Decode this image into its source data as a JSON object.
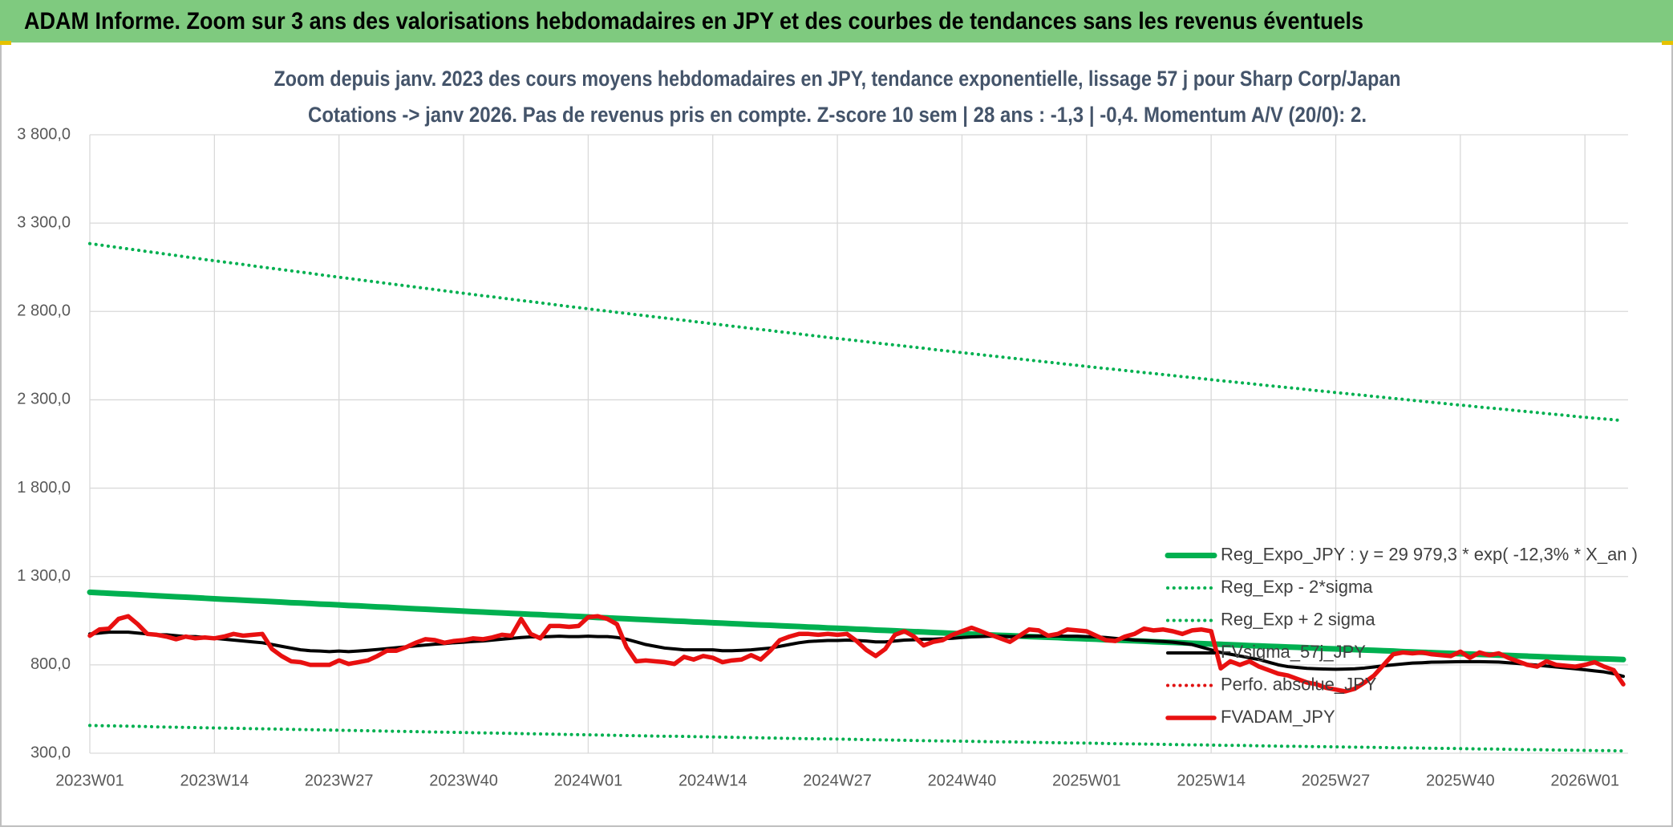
{
  "header": "ADAM Informe. Zoom sur 3 ans des valorisations hebdomadaires en JPY et des courbes de tendances sans les revenus éventuels",
  "chart_data": {
    "type": "line",
    "title": "Zoom depuis janv. 2023 des cours moyens hebdomadaires en JPY, tendance exponentielle, lissage 57 j pour Sharp Corp/Japan",
    "subtitle": "Cotations -> janv 2026. Pas de revenus pris en compte. Z-score 10 sem | 28 ans : -1,3 | -0,4. Momentum A/V (20/0): 2.",
    "categories": [
      "2023W01",
      null,
      null,
      null,
      null,
      null,
      null,
      null,
      null,
      null,
      null,
      null,
      null,
      "2023W14",
      null,
      null,
      null,
      null,
      null,
      null,
      null,
      null,
      null,
      null,
      null,
      null,
      "2023W27",
      null,
      null,
      null,
      null,
      null,
      null,
      null,
      null,
      null,
      null,
      null,
      null,
      "2023W40",
      null,
      null,
      null,
      null,
      null,
      null,
      null,
      null,
      null,
      null,
      null,
      null,
      "2024W01",
      null,
      null,
      null,
      null,
      null,
      null,
      null,
      null,
      null,
      null,
      null,
      null,
      "2024W14",
      null,
      null,
      null,
      null,
      null,
      null,
      null,
      null,
      null,
      null,
      null,
      null,
      "2024W27",
      null,
      null,
      null,
      null,
      null,
      null,
      null,
      null,
      null,
      null,
      null,
      null,
      "2024W40",
      null,
      null,
      null,
      null,
      null,
      null,
      null,
      null,
      null,
      null,
      null,
      null,
      "2025W01",
      null,
      null,
      null,
      null,
      null,
      null,
      null,
      null,
      null,
      null,
      null,
      null,
      "2025W14",
      null,
      null,
      null,
      null,
      null,
      null,
      null,
      null,
      null,
      null,
      null,
      null,
      "2025W27",
      null,
      null,
      null,
      null,
      null,
      null,
      null,
      null,
      null,
      null,
      null,
      null,
      "2025W40",
      null,
      null,
      null,
      null,
      null,
      null,
      null,
      null,
      null,
      null,
      null,
      null,
      "2026W01",
      null,
      null,
      null,
      null
    ],
    "series": [
      {
        "name": "Reg_Expo_JPY : y = 29 979,3 * exp( -12,3% *  X_an )",
        "color": "#00b050",
        "dash": "solid",
        "width": 7,
        "values": [
          1211,
          1208,
          1205,
          1202,
          1200,
          1197,
          1194,
          1191,
          1188,
          1185,
          1183,
          1180,
          1177,
          1174,
          1171,
          1169,
          1166,
          1163,
          1161,
          1158,
          1155,
          1152,
          1150,
          1147,
          1144,
          1142,
          1139,
          1136,
          1134,
          1131,
          1128,
          1126,
          1123,
          1120,
          1117,
          1115,
          1112,
          1109,
          1107,
          1104,
          1101,
          1099,
          1096,
          1094,
          1091,
          1089,
          1086,
          1084,
          1081,
          1079,
          1076,
          1074,
          1071,
          1068,
          1066,
          1063,
          1061,
          1058,
          1056,
          1053,
          1051,
          1048,
          1046,
          1043,
          1041,
          1038,
          1036,
          1033,
          1031,
          1028,
          1026,
          1024,
          1021,
          1019,
          1017,
          1014,
          1012,
          1009,
          1007,
          1005,
          1002,
          1000,
          997,
          995,
          993,
          990,
          988,
          986,
          983,
          981,
          978,
          976,
          974,
          971,
          969,
          967,
          965,
          963,
          960,
          958,
          956,
          954,
          951,
          949,
          947,
          945,
          942,
          940,
          938,
          936,
          934,
          931,
          929,
          927,
          925,
          922,
          920,
          918,
          916,
          914,
          912,
          909,
          907,
          905,
          903,
          901,
          899,
          897,
          894,
          892,
          890,
          888,
          886,
          884,
          882,
          880,
          878,
          875,
          873,
          871,
          869,
          867,
          865,
          863,
          861,
          859,
          857,
          855,
          853,
          851,
          849,
          847,
          845,
          843,
          841,
          839,
          837,
          835,
          834,
          832,
          830
        ]
      },
      {
        "name": "Reg_Exp - 2*sigma",
        "color": "#00b050",
        "dash": "dotted",
        "width": 4,
        "values": [
          457,
          456,
          455,
          454,
          453,
          452,
          451,
          449,
          448,
          447,
          446,
          445,
          444,
          443,
          442,
          441,
          440,
          439,
          438,
          437,
          436,
          435,
          434,
          433,
          432,
          431,
          430,
          429,
          428,
          427,
          426,
          425,
          424,
          423,
          422,
          421,
          420,
          419,
          418,
          417,
          416,
          415,
          414,
          413,
          412,
          411,
          410,
          409,
          408,
          407,
          406,
          405,
          404,
          403,
          402,
          401,
          400,
          399,
          398,
          397,
          396,
          396,
          395,
          394,
          393,
          392,
          391,
          390,
          389,
          388,
          387,
          386,
          385,
          384,
          383,
          382,
          381,
          381,
          380,
          379,
          378,
          377,
          376,
          375,
          374,
          373,
          372,
          371,
          370,
          369,
          369,
          368,
          367,
          366,
          365,
          364,
          364,
          363,
          362,
          361,
          360,
          359,
          358,
          358,
          357,
          356,
          355,
          354,
          353,
          353,
          352,
          351,
          350,
          349,
          348,
          347,
          347,
          346,
          345,
          344,
          344,
          343,
          342,
          341,
          340,
          339,
          339,
          338,
          337,
          337,
          336,
          335,
          334,
          334,
          333,
          332,
          331,
          330,
          330,
          329,
          328,
          327,
          327,
          326,
          325,
          324,
          324,
          323,
          322,
          321,
          320,
          320,
          319,
          318,
          317,
          317,
          316,
          315,
          315,
          314,
          313
        ]
      },
      {
        "name": "Reg_Exp + 2 sigma",
        "color": "#00b050",
        "dash": "dotted",
        "width": 4,
        "values": [
          3184,
          3177,
          3169,
          3162,
          3154,
          3147,
          3139,
          3132,
          3124,
          3117,
          3109,
          3102,
          3094,
          3087,
          3080,
          3073,
          3066,
          3058,
          3051,
          3044,
          3037,
          3030,
          3023,
          3016,
          3008,
          3001,
          2994,
          2987,
          2980,
          2973,
          2966,
          2959,
          2952,
          2945,
          2938,
          2931,
          2924,
          2917,
          2910,
          2903,
          2896,
          2889,
          2883,
          2876,
          2869,
          2862,
          2856,
          2849,
          2842,
          2835,
          2828,
          2822,
          2815,
          2808,
          2802,
          2795,
          2789,
          2782,
          2776,
          2769,
          2763,
          2756,
          2750,
          2743,
          2737,
          2730,
          2724,
          2717,
          2711,
          2704,
          2698,
          2692,
          2685,
          2679,
          2673,
          2666,
          2660,
          2653,
          2647,
          2641,
          2635,
          2629,
          2622,
          2616,
          2610,
          2604,
          2598,
          2592,
          2585,
          2579,
          2573,
          2567,
          2561,
          2555,
          2549,
          2543,
          2537,
          2531,
          2525,
          2519,
          2513,
          2507,
          2501,
          2495,
          2489,
          2483,
          2477,
          2472,
          2466,
          2460,
          2454,
          2449,
          2443,
          2437,
          2431,
          2426,
          2420,
          2414,
          2408,
          2403,
          2397,
          2392,
          2386,
          2380,
          2375,
          2369,
          2364,
          2358,
          2352,
          2347,
          2341,
          2336,
          2330,
          2325,
          2319,
          2314,
          2308,
          2303,
          2297,
          2292,
          2286,
          2281,
          2275,
          2270,
          2265,
          2259,
          2254,
          2249,
          2244,
          2238,
          2233,
          2228,
          2222,
          2217,
          2212,
          2206,
          2201,
          2196,
          2192,
          2187,
          2182
        ]
      },
      {
        "name": "FVsigma_57j_JPY",
        "color": "#000000",
        "dash": "solid",
        "width": 4,
        "values": [
          975,
          980,
          985,
          985,
          985,
          980,
          975,
          970,
          970,
          965,
          960,
          960,
          955,
          950,
          945,
          940,
          935,
          930,
          925,
          915,
          905,
          895,
          885,
          880,
          878,
          875,
          878,
          875,
          878,
          882,
          887,
          892,
          897,
          902,
          907,
          912,
          917,
          920,
          925,
          928,
          932,
          935,
          940,
          945,
          950,
          955,
          958,
          958,
          960,
          962,
          960,
          960,
          962,
          960,
          960,
          955,
          945,
          930,
          915,
          905,
          895,
          890,
          885,
          885,
          885,
          885,
          880,
          880,
          882,
          885,
          890,
          895,
          905,
          915,
          925,
          932,
          935,
          938,
          938,
          940,
          938,
          935,
          930,
          930,
          935,
          940,
          942,
          945,
          945,
          948,
          950,
          955,
          958,
          960,
          962,
          962,
          960,
          960,
          962,
          963,
          963,
          963,
          962,
          962,
          960,
          958,
          955,
          950,
          945,
          940,
          938,
          935,
          932,
          928,
          922,
          915,
          900,
          885,
          870,
          860,
          850,
          840,
          830,
          815,
          800,
          790,
          785,
          780,
          778,
          776,
          775,
          776,
          778,
          782,
          788,
          795,
          800,
          805,
          810,
          812,
          815,
          816,
          817,
          818,
          818,
          818,
          817,
          816,
          812,
          808,
          803,
          798,
          793,
          788,
          783,
          778,
          772,
          766,
          760,
          750,
          735
        ]
      },
      {
        "name": "Perfo. absolue_JPY",
        "color": "#e01010",
        "dash": "dotted",
        "width": 4,
        "values": [
          null,
          null,
          null,
          null,
          null,
          null,
          null,
          null,
          null,
          null,
          null,
          null,
          null,
          null,
          null,
          null,
          null,
          null,
          null,
          null,
          null,
          null,
          null,
          null,
          null,
          null,
          null,
          null,
          null,
          null,
          null,
          null,
          null,
          null,
          null,
          null,
          null,
          null,
          null,
          null,
          null,
          null,
          null,
          null,
          null,
          null,
          null,
          null,
          null,
          null,
          null,
          null,
          null,
          null,
          null,
          null,
          null,
          null,
          null,
          null,
          null,
          null,
          null,
          null,
          null,
          null,
          null,
          null,
          null,
          null,
          null,
          null,
          null,
          null,
          null,
          null,
          null,
          null,
          null,
          null,
          null,
          null,
          null,
          null,
          null,
          null,
          null,
          null,
          null,
          null,
          null,
          null,
          null,
          null,
          null,
          null,
          null,
          null,
          null,
          null,
          null,
          null,
          null,
          null,
          null,
          null,
          null,
          null,
          null,
          null,
          null,
          null,
          null,
          null,
          null,
          null,
          null,
          null,
          null,
          null,
          null,
          null,
          null,
          null,
          null,
          null,
          null,
          null,
          null,
          null,
          null,
          null,
          null,
          null,
          null,
          null,
          null,
          null,
          null,
          null,
          null,
          null,
          null,
          null,
          null,
          null,
          null,
          null,
          null,
          null,
          null,
          null,
          null,
          null,
          null,
          null,
          null,
          null,
          null,
          null,
          null
        ]
      },
      {
        "name": "FVADAM_JPY",
        "color": "#e81010",
        "dash": "solid",
        "width": 5.5,
        "values": [
          965,
          1000,
          1005,
          1060,
          1075,
          1030,
          975,
          970,
          960,
          945,
          960,
          950,
          955,
          950,
          960,
          975,
          965,
          970,
          975,
          890,
          850,
          820,
          815,
          800,
          800,
          800,
          825,
          805,
          815,
          825,
          850,
          880,
          880,
          900,
          925,
          945,
          940,
          925,
          935,
          940,
          950,
          945,
          955,
          970,
          965,
          1060,
          975,
          950,
          1020,
          1020,
          1015,
          1020,
          1070,
          1075,
          1060,
          1030,
          900,
          820,
          825,
          820,
          815,
          805,
          845,
          830,
          850,
          840,
          815,
          825,
          830,
          855,
          830,
          880,
          940,
          960,
          975,
          975,
          970,
          975,
          970,
          975,
          935,
          885,
          850,
          890,
          970,
          990,
          960,
          910,
          930,
          940,
          970,
          990,
          1010,
          990,
          970,
          950,
          930,
          965,
          1000,
          995,
          965,
          975,
          1000,
          995,
          990,
          965,
          940,
          935,
          960,
          975,
          1005,
          995,
          1000,
          990,
          975,
          995,
          1000,
          990,
          780,
          820,
          800,
          820,
          790,
          770,
          750,
          740,
          720,
          700,
          690,
          670,
          660,
          650,
          665,
          700,
          740,
          800,
          860,
          870,
          865,
          870,
          860,
          855,
          850,
          875,
          840,
          870,
          855,
          865,
          840,
          820,
          800,
          790,
          820,
          800,
          795,
          790,
          800,
          815,
          790,
          770,
          690
        ]
      }
    ],
    "ylim": [
      300,
      3800
    ],
    "yticks": [
      {
        "value": 300,
        "label": "300,0"
      },
      {
        "value": 800,
        "label": "800,0"
      },
      {
        "value": 1300,
        "label": "1 300,0"
      },
      {
        "value": 1800,
        "label": "1 800,0"
      },
      {
        "value": 2300,
        "label": "2 300,0"
      },
      {
        "value": 2800,
        "label": "2 800,0"
      },
      {
        "value": 3300,
        "label": "3 300,0"
      },
      {
        "value": 3800,
        "label": "3 800,0"
      }
    ],
    "grid": true,
    "legend": "bottom-right"
  }
}
